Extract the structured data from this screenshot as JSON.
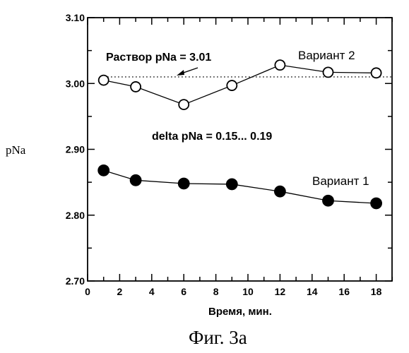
{
  "chart_data": {
    "type": "line",
    "caption": "Фиг. 3а",
    "xlabel": "Время, мин.",
    "ylabel": "pNa",
    "xlim": [
      0,
      19
    ],
    "ylim": [
      2.7,
      3.1
    ],
    "x_ticks": [
      0,
      2,
      4,
      6,
      8,
      10,
      12,
      14,
      16,
      18
    ],
    "y_ticks": [
      "2.70",
      "2.80",
      "2.90",
      "3.00",
      "3.10"
    ],
    "series": [
      {
        "name": "Вариант 2",
        "marker": "open-circle",
        "points": [
          [
            1,
            3.005
          ],
          [
            3,
            2.995
          ],
          [
            6,
            2.968
          ],
          [
            9,
            2.997
          ],
          [
            12,
            3.028
          ],
          [
            15,
            3.017
          ],
          [
            18,
            3.016
          ]
        ]
      },
      {
        "name": "Вариант 1",
        "marker": "filled-circle",
        "points": [
          [
            1,
            2.868
          ],
          [
            3,
            2.853
          ],
          [
            6,
            2.848
          ],
          [
            9,
            2.847
          ],
          [
            12,
            2.836
          ],
          [
            15,
            2.822
          ],
          [
            18,
            2.818
          ]
        ]
      }
    ],
    "reference_line": {
      "y": 3.01,
      "style": "dotted",
      "label": "Раствор pNa = 3.01"
    },
    "annotations": {
      "delta": "delta pNa = 0.15... 0.19"
    }
  }
}
